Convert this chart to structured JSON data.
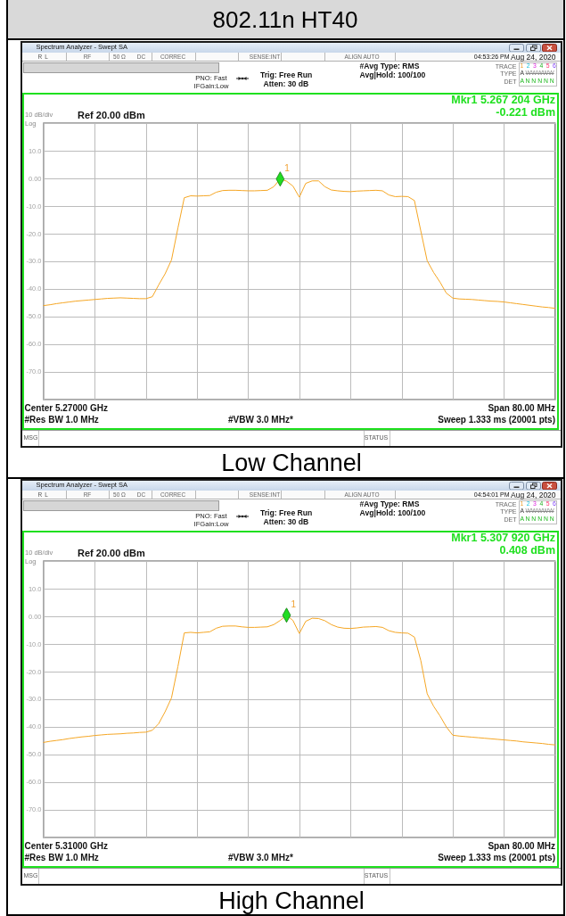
{
  "chart_data": [
    {
      "type": "line",
      "title": "802.11n HT40",
      "categories": [
        null,
        null,
        null,
        null,
        null,
        null,
        null,
        null,
        null,
        null,
        null,
        null,
        null,
        null,
        null,
        null,
        null,
        null,
        null,
        null,
        null,
        null,
        null,
        null,
        null,
        null,
        null,
        null,
        null,
        null,
        null,
        null,
        null,
        null,
        null,
        null,
        null,
        null,
        null,
        null,
        null,
        null,
        null,
        null,
        null,
        null,
        null,
        null,
        null,
        null,
        null,
        null,
        null,
        null,
        null,
        null,
        null,
        null,
        null,
        null,
        null,
        null,
        null,
        null,
        null,
        null,
        null,
        null,
        null,
        null,
        null,
        null,
        null,
        null,
        null,
        null,
        null,
        null,
        null,
        null,
        null
      ],
      "series": [
        {
          "color": "#f5a623",
          "values": [
            -46.0,
            -45.7,
            -45.3,
            -45.0,
            -44.7,
            -44.4,
            -44.2,
            -44.0,
            -43.8,
            -43.6,
            -43.4,
            -43.3,
            -43.2,
            -43.3,
            -43.4,
            -43.5,
            -43.5,
            -42.8,
            -38.5,
            -34.5,
            -29.5,
            -18.0,
            -7.0,
            -6.3,
            -6.4,
            -6.3,
            -6.2,
            -5.0,
            -4.4,
            -4.3,
            -4.3,
            -4.4,
            -4.5,
            -4.5,
            -4.4,
            -4.3,
            -3.0,
            -0.2,
            -1.0,
            -2.8,
            -6.8,
            -1.8,
            -0.9,
            -0.9,
            -3.0,
            -4.2,
            -4.5,
            -4.7,
            -4.8,
            -4.6,
            -4.5,
            -4.4,
            -4.3,
            -4.5,
            -6.0,
            -6.6,
            -6.5,
            -6.6,
            -8.0,
            -19.0,
            -29.8,
            -34.0,
            -37.5,
            -41.5,
            -43.3,
            -43.6,
            -43.7,
            -43.8,
            -44.0,
            -44.2,
            -44.4,
            -44.5,
            -44.7,
            -45.0,
            -45.3,
            -45.6,
            -45.9,
            -46.2,
            -46.5,
            -46.7,
            -47.0
          ]
        },
        {
          "type": "scatter",
          "name": "1",
          "color": "#22dd22",
          "marker": "diamond",
          "values": [
            null,
            null,
            null,
            null,
            null,
            null,
            null,
            null,
            null,
            null,
            null,
            null,
            null,
            null,
            null,
            null,
            null,
            null,
            null,
            null,
            null,
            null,
            null,
            null,
            null,
            null,
            null,
            null,
            null,
            null,
            null,
            null,
            null,
            null,
            null,
            null,
            null,
            -0.221,
            null,
            null,
            null,
            null,
            null,
            null,
            null,
            null,
            null,
            null,
            null,
            null,
            null,
            null,
            null,
            null,
            null,
            null,
            null,
            null,
            null,
            null,
            null,
            null,
            null,
            null,
            null,
            null,
            null,
            null,
            null,
            null,
            null,
            null,
            null,
            null,
            null,
            null,
            null,
            null,
            null,
            null,
            null
          ]
        }
      ],
      "ylim": [
        -80,
        20
      ],
      "yticks": [
        {
          "value": 20,
          "label": null
        },
        {
          "value": 10,
          "label": "10.0"
        },
        {
          "value": 0,
          "label": "0.00"
        },
        {
          "value": -10,
          "label": "-10.0"
        },
        {
          "value": -20,
          "label": "-20.0"
        },
        {
          "value": -30,
          "label": "-30.0"
        },
        {
          "value": -40,
          "label": "-40.0"
        },
        {
          "value": -50,
          "label": "-50.0"
        },
        {
          "value": -60,
          "label": "-60.0"
        },
        {
          "value": -70,
          "label": "-70.0"
        },
        {
          "value": -80,
          "label": null
        }
      ],
      "grid": true,
      "tick_labels": "y",
      "annotations": [
        "Spectrum Analyzer - Swept SA",
        "RL",
        "RF",
        "50 Ω",
        "DC",
        "CORREC",
        "SENSE:INT",
        "ALIGN AUTO",
        "04:53:26 PM",
        "Aug 24, 2020",
        "PNO: Fast",
        "IFGain:Low",
        "Trig: Free Run",
        "Atten: 30 dB",
        "#Avg Type: RMS",
        "Avg|Hold: 100/100",
        "TRACE",
        "1 2 3 4 5 6",
        "TYPE",
        "A WWWWW",
        "DET",
        "A N N N N N",
        "Mkr1 5.267 204 GHz",
        "-0.221 dBm",
        "10 dB/div",
        "Ref 20.00 dBm",
        "Log",
        "Center 5.27000 GHz",
        "#Res BW 1.0 MHz",
        "#VBW 3.0 MHz*",
        "Span 80.00 MHz",
        "Sweep 1.333 ms (20001 pts)",
        "MSG",
        "STATUS",
        "Low Channel"
      ]
    },
    {
      "type": "line",
      "categories": [
        null,
        null,
        null,
        null,
        null,
        null,
        null,
        null,
        null,
        null,
        null,
        null,
        null,
        null,
        null,
        null,
        null,
        null,
        null,
        null,
        null,
        null,
        null,
        null,
        null,
        null,
        null,
        null,
        null,
        null,
        null,
        null,
        null,
        null,
        null,
        null,
        null,
        null,
        null,
        null,
        null,
        null,
        null,
        null,
        null,
        null,
        null,
        null,
        null,
        null,
        null,
        null,
        null,
        null,
        null,
        null,
        null,
        null,
        null,
        null,
        null,
        null,
        null,
        null,
        null,
        null,
        null,
        null,
        null,
        null,
        null,
        null,
        null,
        null,
        null,
        null,
        null,
        null,
        null,
        null,
        null
      ],
      "series": [
        {
          "color": "#f5a623",
          "values": [
            -45.6,
            -45.2,
            -44.9,
            -44.6,
            -44.2,
            -43.9,
            -43.6,
            -43.4,
            -43.1,
            -42.9,
            -42.7,
            -42.6,
            -42.5,
            -42.3,
            -42.2,
            -42.0,
            -41.9,
            -41.2,
            -38.8,
            -34.5,
            -29.5,
            -18.2,
            -6.0,
            -5.8,
            -6.0,
            -5.8,
            -5.6,
            -4.3,
            -3.6,
            -3.5,
            -3.5,
            -3.8,
            -4.0,
            -4.0,
            -3.9,
            -3.8,
            -3.0,
            -1.5,
            0.4,
            -1.5,
            -6.2,
            -1.8,
            -0.7,
            -0.8,
            -1.6,
            -3.0,
            -3.9,
            -4.3,
            -4.4,
            -4.2,
            -3.9,
            -3.8,
            -3.7,
            -4.0,
            -5.2,
            -5.8,
            -6.0,
            -6.1,
            -7.5,
            -16.0,
            -28.0,
            -32.5,
            -36.0,
            -40.0,
            -43.0,
            -43.3,
            -43.5,
            -43.7,
            -43.9,
            -44.1,
            -44.3,
            -44.5,
            -44.7,
            -44.9,
            -45.1,
            -45.4,
            -45.6,
            -45.8,
            -46.0,
            -46.3,
            -46.5
          ]
        },
        {
          "type": "scatter",
          "name": "1",
          "color": "#22dd22",
          "marker": "diamond",
          "values": [
            null,
            null,
            null,
            null,
            null,
            null,
            null,
            null,
            null,
            null,
            null,
            null,
            null,
            null,
            null,
            null,
            null,
            null,
            null,
            null,
            null,
            null,
            null,
            null,
            null,
            null,
            null,
            null,
            null,
            null,
            null,
            null,
            null,
            null,
            null,
            null,
            null,
            null,
            0.408,
            null,
            null,
            null,
            null,
            null,
            null,
            null,
            null,
            null,
            null,
            null,
            null,
            null,
            null,
            null,
            null,
            null,
            null,
            null,
            null,
            null,
            null,
            null,
            null,
            null,
            null,
            null,
            null,
            null,
            null,
            null,
            null,
            null,
            null,
            null,
            null,
            null,
            null,
            null,
            null,
            null,
            null
          ]
        }
      ],
      "ylim": [
        -80,
        20
      ],
      "yticks": [
        {
          "value": 20,
          "label": null
        },
        {
          "value": 10,
          "label": "10.0"
        },
        {
          "value": 0,
          "label": "0.00"
        },
        {
          "value": -10,
          "label": "-10.0"
        },
        {
          "value": -20,
          "label": "-20.0"
        },
        {
          "value": -30,
          "label": "-30.0"
        },
        {
          "value": -40,
          "label": "-40.0"
        },
        {
          "value": -50,
          "label": "-50.0"
        },
        {
          "value": -60,
          "label": "-60.0"
        },
        {
          "value": -70,
          "label": "-70.0"
        },
        {
          "value": -80,
          "label": null
        }
      ],
      "grid": true,
      "tick_labels": "y",
      "annotations": [
        "Spectrum Analyzer - Swept SA",
        "RL",
        "RF",
        "50 Ω",
        "DC",
        "CORREC",
        "SENSE:INT",
        "ALIGN AUTO",
        "04:54:01 PM",
        "Aug 24, 2020",
        "PNO: Fast",
        "IFGain:Low",
        "Trig: Free Run",
        "Atten: 30 dB",
        "#Avg Type: RMS",
        "Avg|Hold: 100/100",
        "TRACE",
        "1 2 3 4 5 6",
        "TYPE",
        "A WWWWW",
        "DET",
        "A N N N N N",
        "Mkr1 5.307 920 GHz",
        "0.408 dBm",
        "10 dB/div",
        "Ref 20.00 dBm",
        "Log",
        "Center 5.31000 GHz",
        "#Res BW 1.0 MHz",
        "#VBW 3.0 MHz*",
        "Span 80.00 MHz",
        "Sweep 1.333 ms (20001 pts)",
        "MSG",
        "STATUS",
        "High Channel"
      ]
    }
  ]
}
